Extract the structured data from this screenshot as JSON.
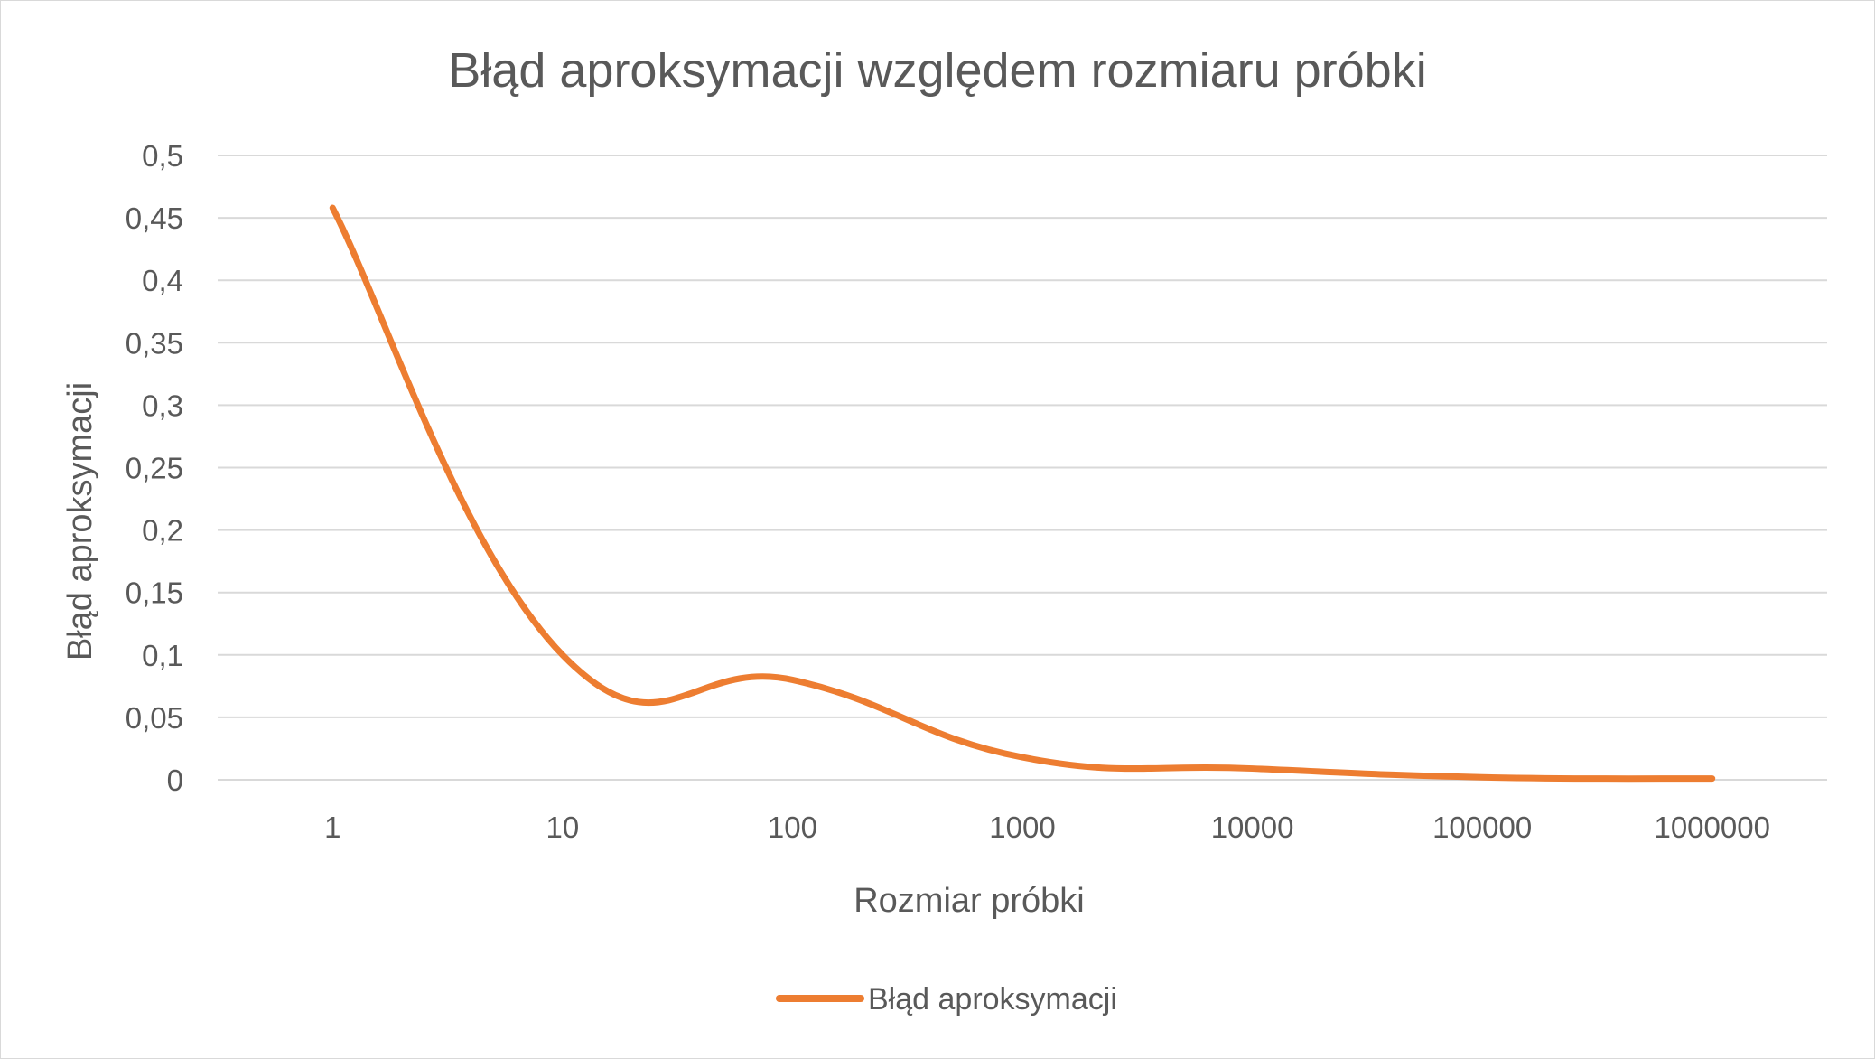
{
  "chart_data": {
    "type": "line",
    "title": "Błąd aproksymacji względem rozmiaru próbki",
    "xlabel": "Rozmiar próbki",
    "ylabel": "Błąd aproksymacji",
    "categories": [
      "1",
      "10",
      "100",
      "1000",
      "10000",
      "100000",
      "1000000"
    ],
    "series": [
      {
        "name": "Błąd aproksymacji",
        "color": "#ED7D31",
        "values": [
          0.458,
          0.1,
          0.08,
          0.018,
          0.009,
          0.002,
          0.001
        ]
      }
    ],
    "y_ticks": [
      "0",
      "0,05",
      "0,1",
      "0,15",
      "0,2",
      "0,25",
      "0,3",
      "0,35",
      "0,4",
      "0,45",
      "0,5"
    ],
    "ylim": [
      0,
      0.5
    ],
    "smooth": true,
    "grid": true,
    "legend_position": "bottom"
  }
}
